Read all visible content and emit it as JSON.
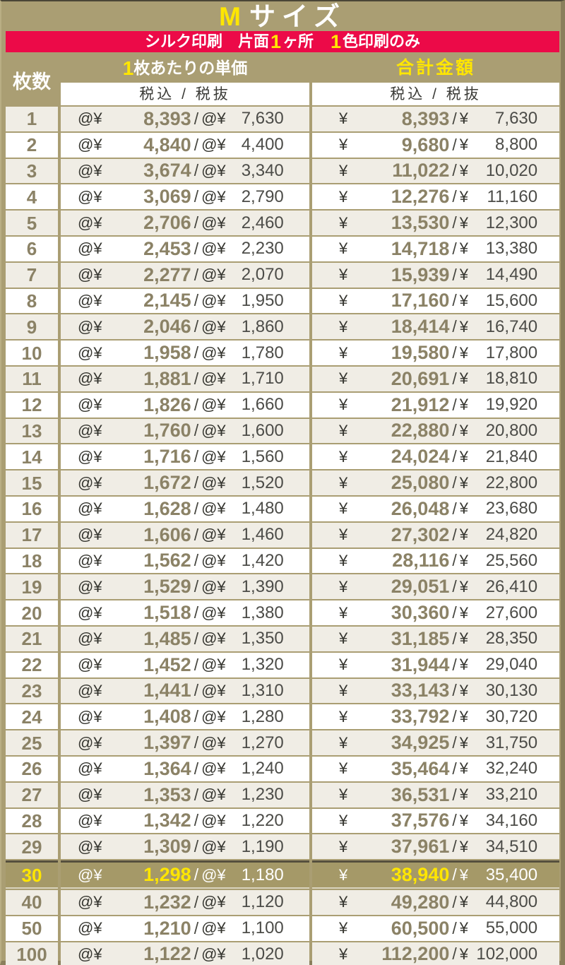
{
  "page": {
    "title": {
      "highlight": "M",
      "rest": "サイズ"
    },
    "banner": {
      "segments": [
        {
          "text": "シルク印刷　片面",
          "hl": false
        },
        {
          "text": "1",
          "hl": true
        },
        {
          "text": "ヶ所　",
          "hl": false
        },
        {
          "text": "1",
          "hl": true
        },
        {
          "text": "色印刷のみ",
          "hl": false
        }
      ]
    }
  },
  "table": {
    "col_qty_label": "枚数",
    "col_unit_label": {
      "segments": [
        {
          "text": "1",
          "hl": true
        },
        {
          "text": "枚あたりの単価",
          "hl": false
        }
      ]
    },
    "col_total_label": "合計金額",
    "tax_label": "税込 / 税抜",
    "symbols": {
      "unit_prefix": "@¥ ",
      "total_prefix": "¥ ",
      "separator": "/"
    },
    "rows": [
      {
        "qty": "1",
        "unit_incl": "8,393",
        "unit_excl": "7,630",
        "total_incl": "8,393",
        "total_excl": "7,630",
        "highlight": false
      },
      {
        "qty": "2",
        "unit_incl": "4,840",
        "unit_excl": "4,400",
        "total_incl": "9,680",
        "total_excl": "8,800",
        "highlight": false
      },
      {
        "qty": "3",
        "unit_incl": "3,674",
        "unit_excl": "3,340",
        "total_incl": "11,022",
        "total_excl": "10,020",
        "highlight": false
      },
      {
        "qty": "4",
        "unit_incl": "3,069",
        "unit_excl": "2,790",
        "total_incl": "12,276",
        "total_excl": "11,160",
        "highlight": false
      },
      {
        "qty": "5",
        "unit_incl": "2,706",
        "unit_excl": "2,460",
        "total_incl": "13,530",
        "total_excl": "12,300",
        "highlight": false
      },
      {
        "qty": "6",
        "unit_incl": "2,453",
        "unit_excl": "2,230",
        "total_incl": "14,718",
        "total_excl": "13,380",
        "highlight": false
      },
      {
        "qty": "7",
        "unit_incl": "2,277",
        "unit_excl": "2,070",
        "total_incl": "15,939",
        "total_excl": "14,490",
        "highlight": false
      },
      {
        "qty": "8",
        "unit_incl": "2,145",
        "unit_excl": "1,950",
        "total_incl": "17,160",
        "total_excl": "15,600",
        "highlight": false
      },
      {
        "qty": "9",
        "unit_incl": "2,046",
        "unit_excl": "1,860",
        "total_incl": "18,414",
        "total_excl": "16,740",
        "highlight": false
      },
      {
        "qty": "10",
        "unit_incl": "1,958",
        "unit_excl": "1,780",
        "total_incl": "19,580",
        "total_excl": "17,800",
        "highlight": false
      },
      {
        "qty": "11",
        "unit_incl": "1,881",
        "unit_excl": "1,710",
        "total_incl": "20,691",
        "total_excl": "18,810",
        "highlight": false
      },
      {
        "qty": "12",
        "unit_incl": "1,826",
        "unit_excl": "1,660",
        "total_incl": "21,912",
        "total_excl": "19,920",
        "highlight": false
      },
      {
        "qty": "13",
        "unit_incl": "1,760",
        "unit_excl": "1,600",
        "total_incl": "22,880",
        "total_excl": "20,800",
        "highlight": false
      },
      {
        "qty": "14",
        "unit_incl": "1,716",
        "unit_excl": "1,560",
        "total_incl": "24,024",
        "total_excl": "21,840",
        "highlight": false
      },
      {
        "qty": "15",
        "unit_incl": "1,672",
        "unit_excl": "1,520",
        "total_incl": "25,080",
        "total_excl": "22,800",
        "highlight": false
      },
      {
        "qty": "16",
        "unit_incl": "1,628",
        "unit_excl": "1,480",
        "total_incl": "26,048",
        "total_excl": "23,680",
        "highlight": false
      },
      {
        "qty": "17",
        "unit_incl": "1,606",
        "unit_excl": "1,460",
        "total_incl": "27,302",
        "total_excl": "24,820",
        "highlight": false
      },
      {
        "qty": "18",
        "unit_incl": "1,562",
        "unit_excl": "1,420",
        "total_incl": "28,116",
        "total_excl": "25,560",
        "highlight": false
      },
      {
        "qty": "19",
        "unit_incl": "1,529",
        "unit_excl": "1,390",
        "total_incl": "29,051",
        "total_excl": "26,410",
        "highlight": false
      },
      {
        "qty": "20",
        "unit_incl": "1,518",
        "unit_excl": "1,380",
        "total_incl": "30,360",
        "total_excl": "27,600",
        "highlight": false
      },
      {
        "qty": "21",
        "unit_incl": "1,485",
        "unit_excl": "1,350",
        "total_incl": "31,185",
        "total_excl": "28,350",
        "highlight": false
      },
      {
        "qty": "22",
        "unit_incl": "1,452",
        "unit_excl": "1,320",
        "total_incl": "31,944",
        "total_excl": "29,040",
        "highlight": false
      },
      {
        "qty": "23",
        "unit_incl": "1,441",
        "unit_excl": "1,310",
        "total_incl": "33,143",
        "total_excl": "30,130",
        "highlight": false
      },
      {
        "qty": "24",
        "unit_incl": "1,408",
        "unit_excl": "1,280",
        "total_incl": "33,792",
        "total_excl": "30,720",
        "highlight": false
      },
      {
        "qty": "25",
        "unit_incl": "1,397",
        "unit_excl": "1,270",
        "total_incl": "34,925",
        "total_excl": "31,750",
        "highlight": false
      },
      {
        "qty": "26",
        "unit_incl": "1,364",
        "unit_excl": "1,240",
        "total_incl": "35,464",
        "total_excl": "32,240",
        "highlight": false
      },
      {
        "qty": "27",
        "unit_incl": "1,353",
        "unit_excl": "1,230",
        "total_incl": "36,531",
        "total_excl": "33,210",
        "highlight": false
      },
      {
        "qty": "28",
        "unit_incl": "1,342",
        "unit_excl": "1,220",
        "total_incl": "37,576",
        "total_excl": "34,160",
        "highlight": false
      },
      {
        "qty": "29",
        "unit_incl": "1,309",
        "unit_excl": "1,190",
        "total_incl": "37,961",
        "total_excl": "34,510",
        "highlight": false
      },
      {
        "qty": "30",
        "unit_incl": "1,298",
        "unit_excl": "1,180",
        "total_incl": "38,940",
        "total_excl": "35,400",
        "highlight": true
      },
      {
        "qty": "40",
        "unit_incl": "1,232",
        "unit_excl": "1,120",
        "total_incl": "49,280",
        "total_excl": "44,800",
        "highlight": false
      },
      {
        "qty": "50",
        "unit_incl": "1,210",
        "unit_excl": "1,100",
        "total_incl": "60,500",
        "total_excl": "55,000",
        "highlight": false
      },
      {
        "qty": "100",
        "unit_incl": "1,122",
        "unit_excl": "1,020",
        "total_incl": "112,200",
        "total_excl": "102,000",
        "highlight": false
      }
    ]
  },
  "colors": {
    "background_khaki": "#aa9e73",
    "banner_red": "#ec0a48",
    "accent_yellow": "#ffe600",
    "price_olive": "#8b8266",
    "text_dark": "#3d3d39",
    "stripe_beige": "#f0ede5",
    "row_white": "#ffffff",
    "highlight_row_bg": "#a59968",
    "highlight_row_border": "#56503e"
  }
}
